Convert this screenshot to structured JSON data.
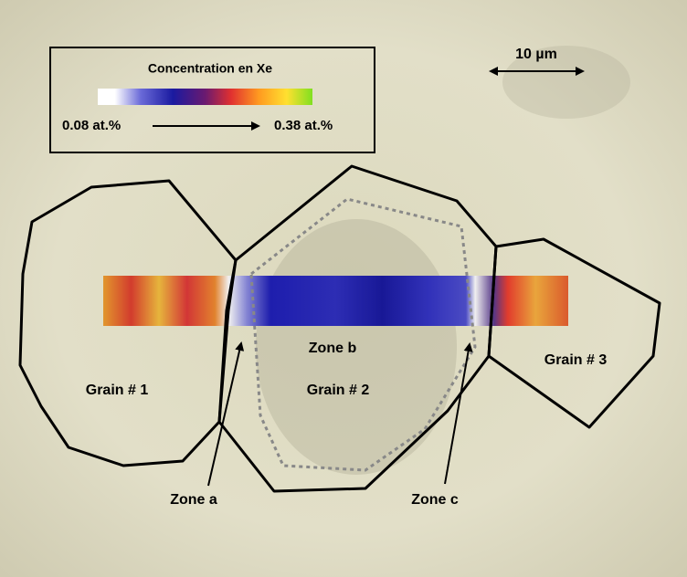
{
  "legend": {
    "title": "Concentration en Xe",
    "min_label": "0.08 at.%",
    "max_label": "0.38 at.%"
  },
  "scale_bar": {
    "label": "10 µm"
  },
  "grains": [
    "Grain # 1",
    "Grain # 2",
    "Grain # 3"
  ],
  "zones": [
    "Zone a",
    "Zone b",
    "Zone c"
  ]
}
